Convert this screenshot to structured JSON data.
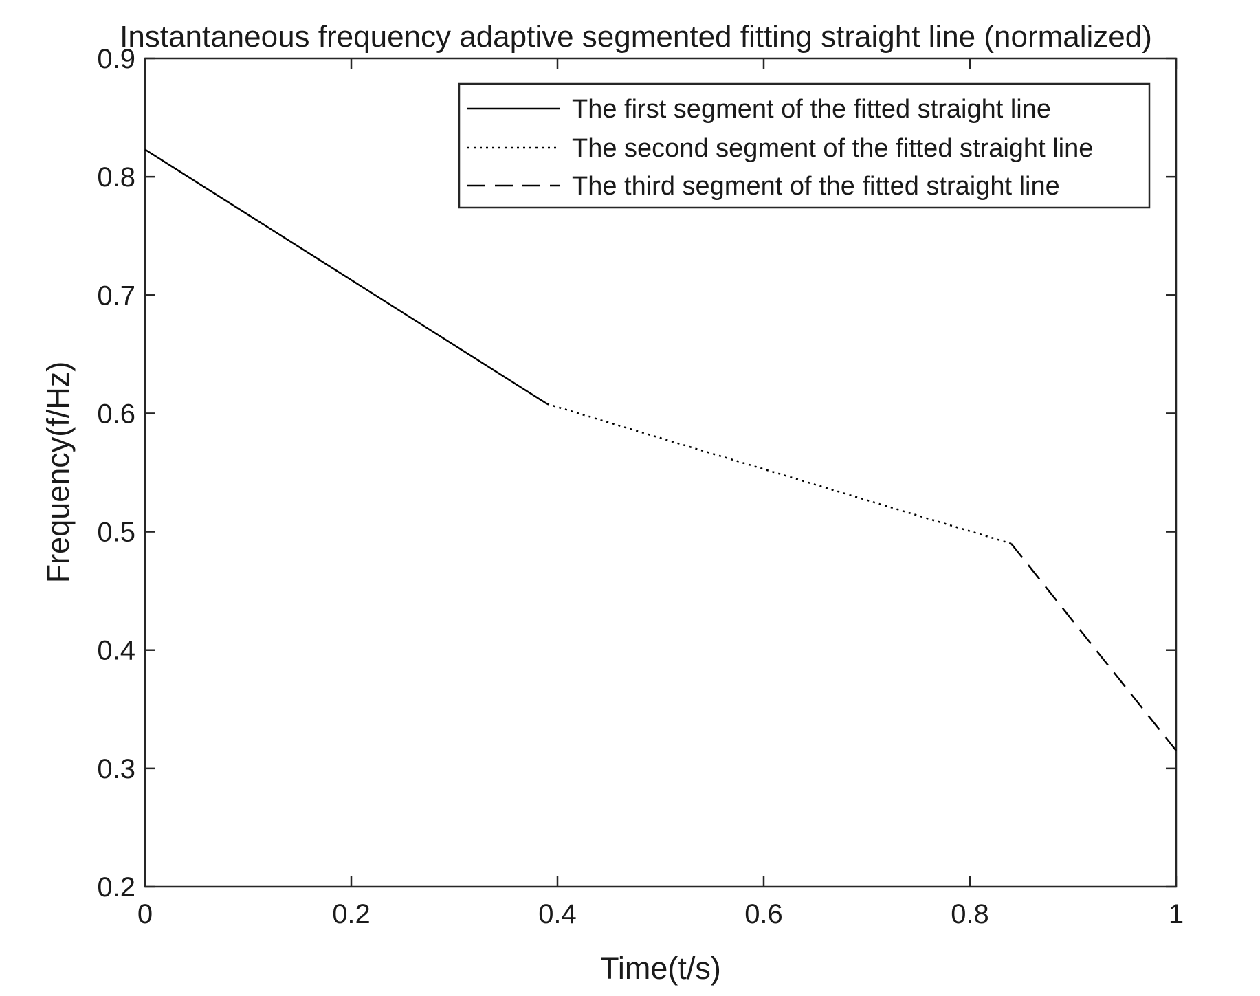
{
  "chart_data": {
    "type": "line",
    "title": "Instantaneous frequency adaptive segmented fitting straight line (normalized)",
    "xlabel": "Time(t/s)",
    "ylabel": "Frequency(f/Hz)",
    "xlim": [
      0,
      1
    ],
    "ylim": [
      0.2,
      0.9
    ],
    "xticks": [
      0,
      0.2,
      0.4,
      0.6,
      0.8,
      1
    ],
    "xtick_labels": [
      "0",
      "0.2",
      "0.4",
      "0.6",
      "0.8",
      "1"
    ],
    "yticks": [
      0.2,
      0.3,
      0.4,
      0.5,
      0.6,
      0.7,
      0.8,
      0.9
    ],
    "ytick_labels": [
      "0.2",
      "0.3",
      "0.4",
      "0.5",
      "0.6",
      "0.7",
      "0.8",
      "0.9"
    ],
    "grid": false,
    "legend_position": "top-right",
    "series": [
      {
        "name": "The first segment of the fitted straight line",
        "style": "solid",
        "x": [
          0,
          0.39
        ],
        "y": [
          0.823,
          0.608
        ]
      },
      {
        "name": "The second segment of the fitted straight line",
        "style": "dotted",
        "x": [
          0.39,
          0.84
        ],
        "y": [
          0.608,
          0.49
        ]
      },
      {
        "name": "The third segment of the fitted straight line",
        "style": "dashed",
        "x": [
          0.84,
          1
        ],
        "y": [
          0.49,
          0.315
        ]
      }
    ],
    "colors": {
      "line": "#000000",
      "axis": "#262626",
      "text": "#1a1a1a",
      "background": "#ffffff"
    }
  }
}
